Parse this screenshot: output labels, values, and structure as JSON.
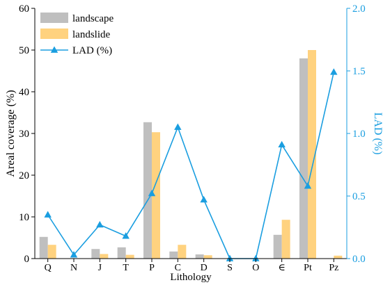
{
  "chart_data": {
    "type": "bar",
    "categories": [
      "Q",
      "N",
      "J",
      "T",
      "P",
      "C",
      "D",
      "S",
      "O",
      "∈",
      "Pt",
      "Pz"
    ],
    "series": [
      {
        "name": "landscape",
        "type": "bar",
        "axis": "left",
        "values": [
          5.2,
          0.0,
          2.3,
          2.7,
          32.7,
          1.7,
          1.0,
          0.0,
          0.0,
          5.7,
          48.0,
          0.0
        ]
      },
      {
        "name": "landslide",
        "type": "bar",
        "axis": "left",
        "values": [
          3.3,
          0.0,
          1.1,
          0.9,
          30.3,
          3.3,
          0.8,
          0.0,
          0.0,
          9.3,
          50.0,
          0.7
        ]
      },
      {
        "name": "LAD (%)",
        "type": "line",
        "axis": "right",
        "values": [
          0.35,
          0.03,
          0.27,
          0.18,
          0.52,
          1.05,
          0.47,
          0.0,
          0.0,
          0.91,
          0.58,
          1.49
        ]
      }
    ],
    "xlabel": "Lithology",
    "ylabel": "Areal coverage (%)",
    "y2label": "LAD (%)",
    "ylim": [
      0,
      60
    ],
    "yticks": [
      "0",
      "10",
      "20",
      "30",
      "40",
      "50",
      "60"
    ],
    "y2lim": [
      0,
      2.0
    ],
    "y2ticks": [
      "0.0",
      "0.5",
      "1.0",
      "1.5",
      "2.0"
    ],
    "grid": false,
    "legend": "top-left",
    "colors": {
      "landscape": "#bfbfbf",
      "landslide": "#ffd27f",
      "lad": "#1a9ee0",
      "axis": "#000000",
      "right_axis": "#1a9ee0"
    }
  }
}
